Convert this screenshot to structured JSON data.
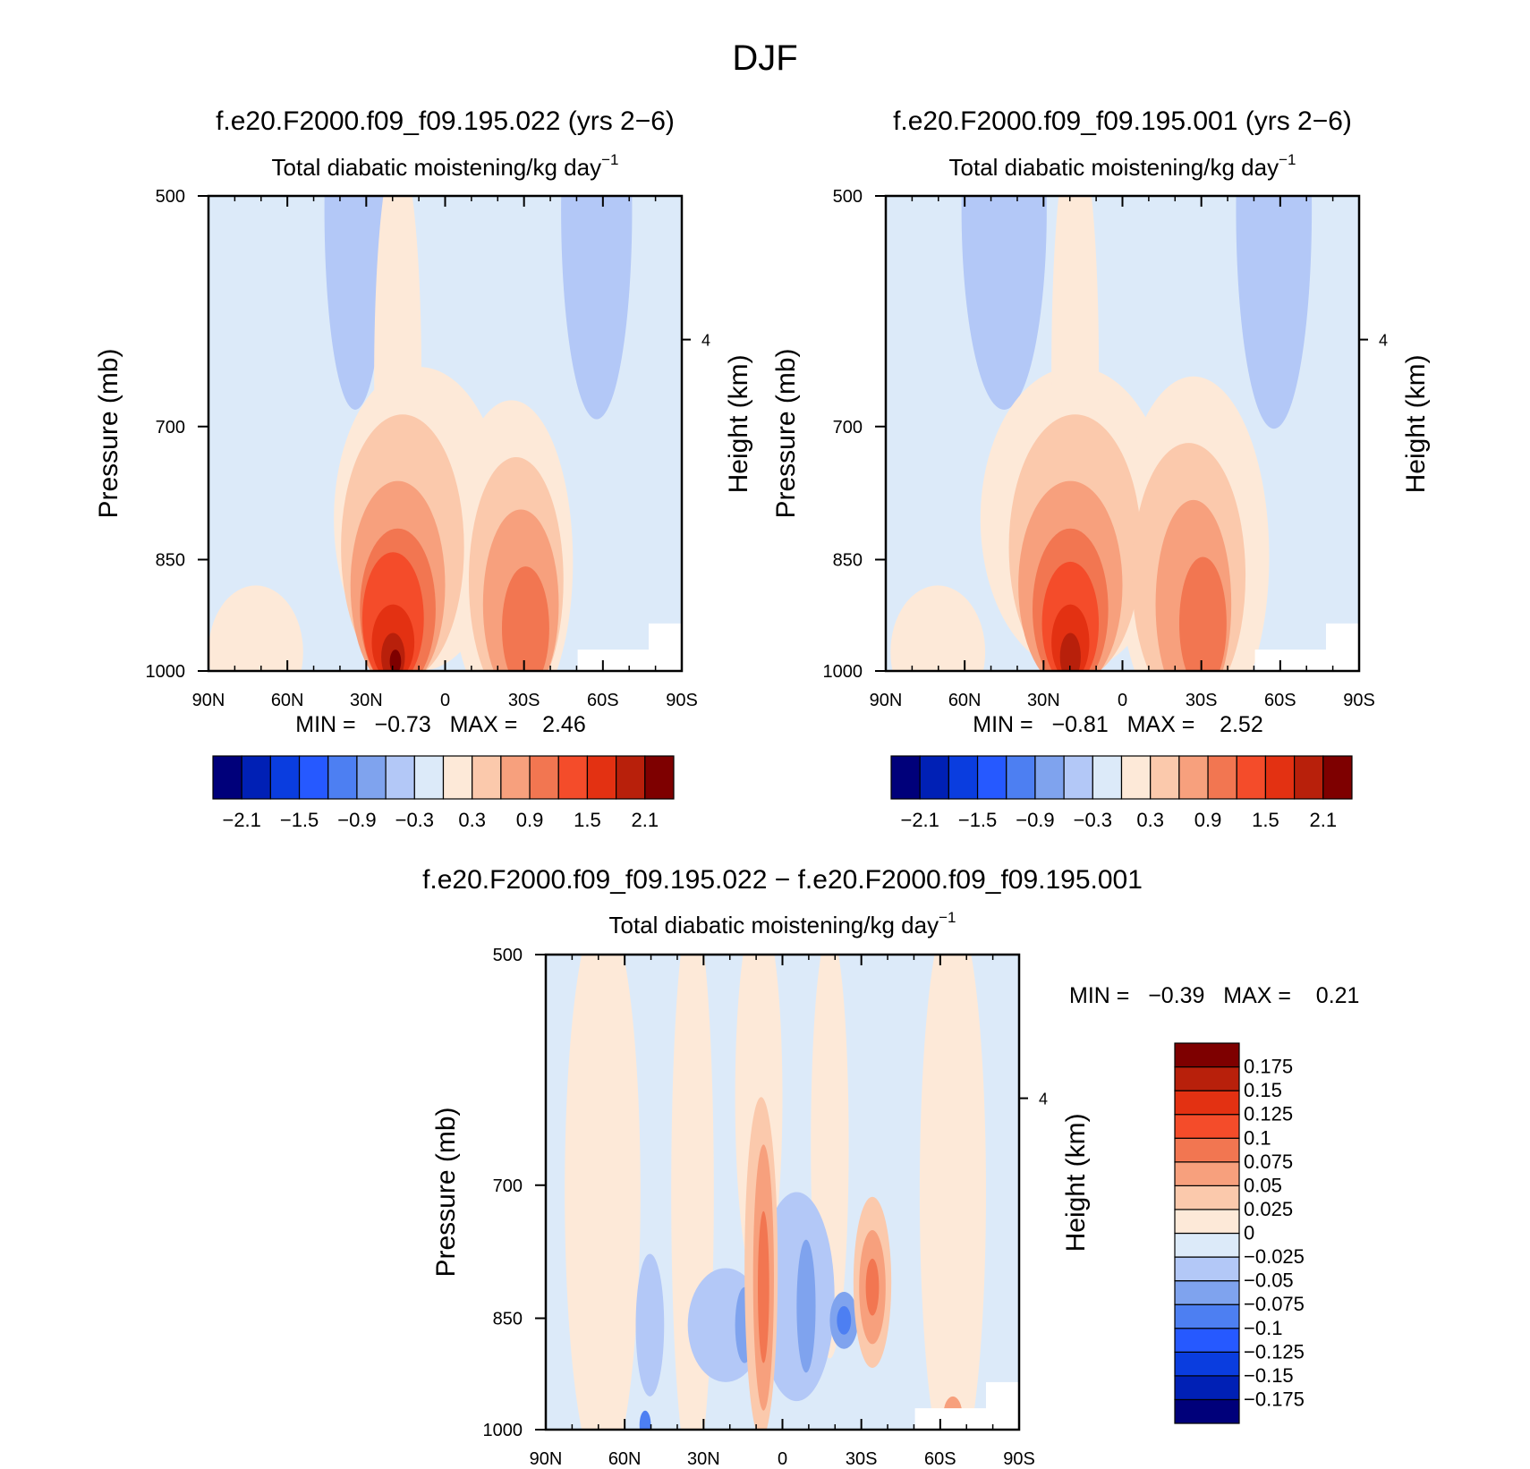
{
  "page_title": "DJF",
  "chart_data": [
    {
      "type": "heatmap",
      "id": "panel-case",
      "title": "f.e20.F2000.f09_f09.195.022 (yrs 2−6)",
      "subtitle": "Total diabatic moistening/kg day",
      "subtitle_superscript": "−1",
      "ylabel": "Pressure (mb)",
      "ylabel_right": "Height (km)",
      "x_ticks": [
        "90N",
        "60N",
        "30N",
        "0",
        "30S",
        "60S",
        "90S"
      ],
      "y_ticks": [
        "500",
        "700",
        "850",
        "1000"
      ],
      "y_right_ticks": [
        "4"
      ],
      "y_axis": "log pressure, 500 to 1000 mb",
      "x_axis": "latitude, 90N to 90S",
      "stats_text": "MIN =   −0.73   MAX =    2.46",
      "min": -0.73,
      "max": 2.46,
      "colorbar": {
        "orientation": "horizontal",
        "levels": [
          -2.1,
          -1.8,
          -1.5,
          -1.2,
          -0.9,
          -0.6,
          -0.3,
          0,
          0.3,
          0.6,
          0.9,
          1.2,
          1.5,
          1.8,
          2.1
        ],
        "labels": [
          "−2.1",
          "−1.5",
          "−0.9",
          "−0.3",
          "0.3",
          "0.9",
          "1.5",
          "2.1"
        ],
        "colors": [
          "#00007a",
          "#0020b5",
          "#0a3ddf",
          "#2659ff",
          "#4d7ff2",
          "#7fa3ee",
          "#b3c8f7",
          "#dceaf9",
          "#fde9d8",
          "#fbc9ac",
          "#f7a07d",
          "#f27651",
          "#f44c2a",
          "#e33112",
          "#b8200b",
          "#7e0000"
        ]
      }
    },
    {
      "type": "heatmap",
      "id": "panel-control",
      "title": "f.e20.F2000.f09_f09.195.001 (yrs 2−6)",
      "subtitle": "Total diabatic moistening/kg day",
      "subtitle_superscript": "−1",
      "ylabel": "Pressure (mb)",
      "ylabel_right": "Height (km)",
      "x_ticks": [
        "90N",
        "60N",
        "30N",
        "0",
        "30S",
        "60S",
        "90S"
      ],
      "y_ticks": [
        "500",
        "700",
        "850",
        "1000"
      ],
      "y_right_ticks": [
        "4"
      ],
      "stats_text": "MIN =   −0.81   MAX =    2.52",
      "min": -0.81,
      "max": 2.52,
      "colorbar": {
        "orientation": "horizontal",
        "levels": [
          -2.1,
          -1.8,
          -1.5,
          -1.2,
          -0.9,
          -0.6,
          -0.3,
          0,
          0.3,
          0.6,
          0.9,
          1.2,
          1.5,
          1.8,
          2.1
        ],
        "labels": [
          "−2.1",
          "−1.5",
          "−0.9",
          "−0.3",
          "0.3",
          "0.9",
          "1.5",
          "2.1"
        ],
        "colors": [
          "#00007a",
          "#0020b5",
          "#0a3ddf",
          "#2659ff",
          "#4d7ff2",
          "#7fa3ee",
          "#b3c8f7",
          "#dceaf9",
          "#fde9d8",
          "#fbc9ac",
          "#f7a07d",
          "#f27651",
          "#f44c2a",
          "#e33112",
          "#b8200b",
          "#7e0000"
        ]
      }
    },
    {
      "type": "heatmap",
      "id": "panel-diff",
      "title": "f.e20.F2000.f09_f09.195.022 − f.e20.F2000.f09_f09.195.001",
      "subtitle": "Total diabatic moistening/kg day",
      "subtitle_superscript": "−1",
      "ylabel": "Pressure (mb)",
      "ylabel_right": "Height (km)",
      "x_ticks": [
        "90N",
        "60N",
        "30N",
        "0",
        "30S",
        "60S",
        "90S"
      ],
      "y_ticks": [
        "500",
        "700",
        "850",
        "1000"
      ],
      "y_right_ticks": [
        "4"
      ],
      "stats_text": "MIN =   −0.39   MAX =    0.21",
      "min": -0.39,
      "max": 0.21,
      "colorbar": {
        "orientation": "vertical",
        "levels": [
          -0.175,
          -0.15,
          -0.125,
          -0.1,
          -0.075,
          -0.05,
          -0.025,
          0,
          0.025,
          0.05,
          0.075,
          0.1,
          0.125,
          0.15,
          0.175
        ],
        "labels": [
          "−0.175",
          "−0.15",
          "−0.125",
          "−0.1",
          "−0.075",
          "−0.05",
          "−0.025",
          "0",
          "0.025",
          "0.05",
          "0.075",
          "0.1",
          "0.125",
          "0.15",
          "0.175"
        ],
        "colors": [
          "#00007a",
          "#0020b5",
          "#0a3ddf",
          "#2659ff",
          "#4d7ff2",
          "#7fa3ee",
          "#b3c8f7",
          "#dceaf9",
          "#fde9d8",
          "#fbc9ac",
          "#f7a07d",
          "#f27651",
          "#f44c2a",
          "#e33112",
          "#b8200b",
          "#7e0000"
        ]
      }
    }
  ]
}
